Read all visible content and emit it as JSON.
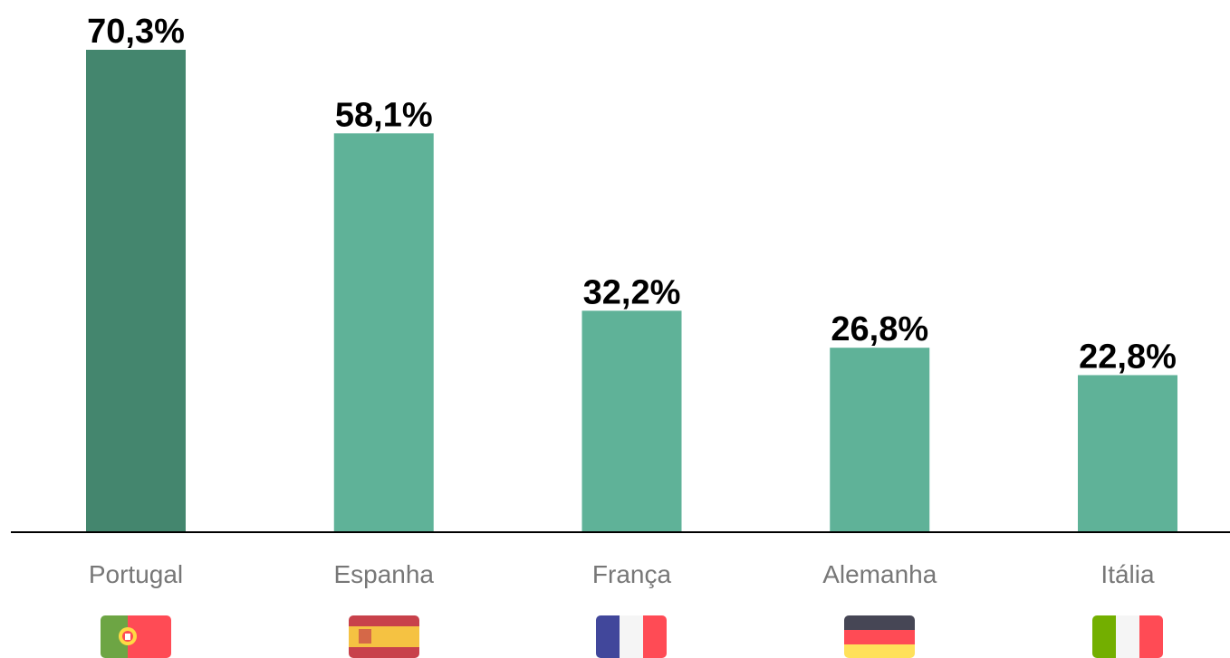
{
  "chart_data": {
    "type": "bar",
    "categories": [
      "Portugal",
      "Espanha",
      "França",
      "Alemanha",
      "Itália"
    ],
    "values": [
      70.3,
      58.1,
      32.2,
      26.8,
      22.8
    ],
    "value_labels": [
      "70,3%",
      "58,1%",
      "32,2%",
      "26,8%",
      "22,8%"
    ],
    "colors": [
      "#44866e",
      "#5fb298",
      "#5fb298",
      "#5fb298",
      "#5fb298"
    ]
  }
}
